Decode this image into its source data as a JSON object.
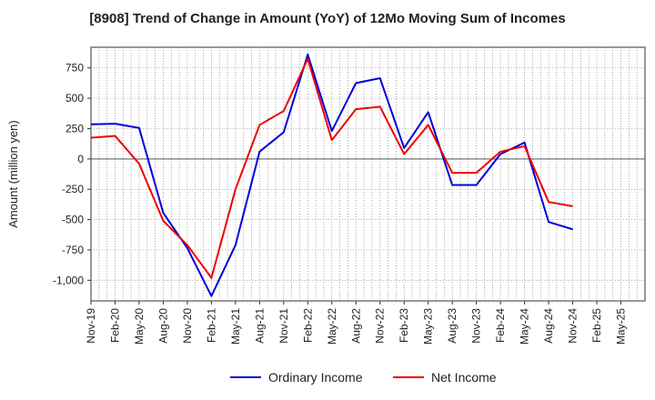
{
  "chart_data": {
    "type": "line",
    "title": "[8908]  Trend of Change in Amount (YoY) of 12Mo Moving Sum of Incomes",
    "ylabel": "Amount (million yen)",
    "xlabel": "",
    "ylim": [
      -1170,
      920
    ],
    "yticks": [
      750,
      500,
      250,
      0,
      -250,
      -500,
      -750,
      -1000
    ],
    "ytick_labels": [
      "750",
      "500",
      "250",
      "0",
      "-250",
      "-500",
      "-750",
      "-1,000"
    ],
    "x": [
      "Nov-19",
      "Feb-20",
      "May-20",
      "Aug-20",
      "Nov-20",
      "Feb-21",
      "May-21",
      "Aug-21",
      "Nov-21",
      "Feb-22",
      "May-22",
      "Aug-22",
      "Nov-22",
      "Feb-23",
      "May-23",
      "Aug-23",
      "Nov-23",
      "Feb-24",
      "May-24",
      "Aug-24",
      "Nov-24",
      "Feb-25",
      "May-25"
    ],
    "grid": true,
    "legend_position": "bottom",
    "series": [
      {
        "name": "Ordinary Income",
        "color": "#0000dd",
        "values": [
          285,
          290,
          255,
          -445,
          -735,
          -1130,
          -710,
          60,
          220,
          860,
          230,
          625,
          665,
          90,
          385,
          -215,
          -215,
          40,
          135,
          -520,
          -580,
          null,
          null
        ]
      },
      {
        "name": "Net Income",
        "color": "#ee0000",
        "values": [
          175,
          190,
          -40,
          -510,
          -710,
          -980,
          -250,
          280,
          395,
          825,
          155,
          410,
          430,
          40,
          280,
          -115,
          -115,
          60,
          105,
          -355,
          -390,
          null,
          null
        ]
      }
    ]
  }
}
